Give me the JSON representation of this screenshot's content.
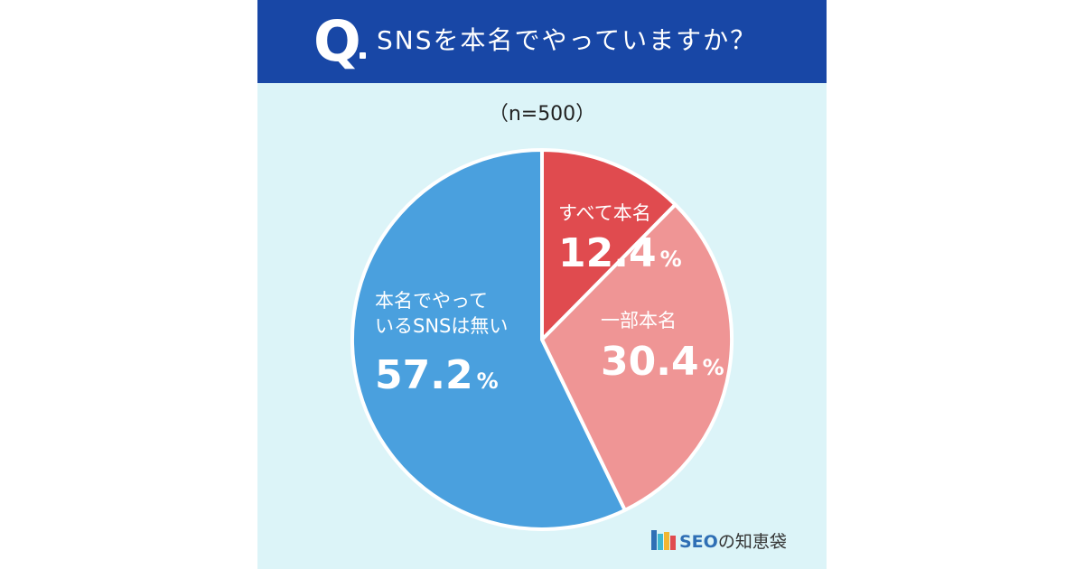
{
  "header": {
    "q_mark": "Q",
    "question": "SNSを本名でやっていますか？"
  },
  "sample_note": "（n=500）",
  "chart_data": {
    "type": "pie",
    "slices": [
      {
        "name": "すべて本名",
        "value": 12.4,
        "value_text": "12.4",
        "color": "#e04b4f"
      },
      {
        "name": "一部本名",
        "value": 30.4,
        "value_text": "30.4",
        "color": "#ef9595"
      },
      {
        "name": "本名でやっているSNSは無い",
        "name_lines": [
          "本名でやって",
          "いるSNSは無い"
        ],
        "value": 57.2,
        "value_text": "57.2",
        "color": "#4aa0de"
      }
    ],
    "unit": "%",
    "start": "12 o'clock",
    "direction": "clockwise"
  },
  "colors": {
    "header_bg": "#1847a6",
    "panel_bg": "#dcf4f8",
    "separator": "#ffffff"
  },
  "brand": {
    "seo": "SEO",
    "rest": "の知恵袋",
    "logo_colors": [
      "#2f6fb5",
      "#3fb7d0",
      "#f2b632",
      "#e04b4f"
    ]
  }
}
